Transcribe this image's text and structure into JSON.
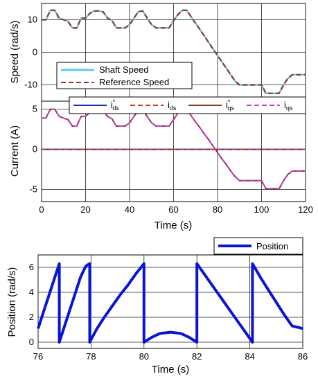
{
  "chart_data": [
    {
      "type": "line",
      "ylabel": "Speed (rad/s)",
      "xlabel": "",
      "xlim": [
        0,
        120
      ],
      "ylim": [
        -15,
        15
      ],
      "xticks": [
        "0",
        "20",
        "40",
        "60",
        "80",
        "100",
        "120"
      ],
      "yticks": [
        "-10",
        "0",
        "10"
      ],
      "ytick_values": [
        -10,
        0,
        10
      ],
      "legend_position": "lower-left",
      "series": [
        {
          "name": "Shaft Speed",
          "color": "#5bc8ec",
          "style": "solid",
          "x": [
            0,
            2,
            4,
            6,
            8,
            10,
            12,
            14,
            16,
            18,
            20,
            22,
            24,
            26,
            28,
            30,
            32,
            34,
            36,
            38,
            40,
            42,
            44,
            46,
            48,
            50,
            52,
            54,
            56,
            58,
            60,
            62,
            64,
            66,
            68,
            70,
            72,
            74,
            76,
            78,
            80,
            82,
            84,
            86,
            88,
            90,
            92,
            94,
            96,
            98,
            100,
            102,
            104,
            106,
            108,
            110,
            112,
            114,
            116,
            118,
            120
          ],
          "y": [
            10,
            10,
            12.9,
            12.9,
            10.5,
            10,
            9.5,
            7.5,
            7.5,
            10.5,
            10.5,
            12,
            12.7,
            12.7,
            12.4,
            10.5,
            9.8,
            7.5,
            7.5,
            7.5,
            8.5,
            10.5,
            12.5,
            12.7,
            10.5,
            8.5,
            7.5,
            7.5,
            7.5,
            7.5,
            9.7,
            11.6,
            12.9,
            12.9,
            10.9,
            8.9,
            7.0,
            5.0,
            3.0,
            1.0,
            -1.0,
            -3.0,
            -4.9,
            -6.9,
            -8.9,
            -10.0,
            -10.0,
            -10.0,
            -10.0,
            -10.0,
            -10.0,
            -12.6,
            -12.6,
            -12.6,
            -12.6,
            -10.0,
            -8.0,
            -6.9,
            -6.9,
            -6.9,
            -6.9
          ]
        },
        {
          "name": "Reference Speed",
          "color": "#a0302a",
          "style": "dashed",
          "x": [
            0,
            2,
            4,
            6,
            8,
            10,
            12,
            14,
            16,
            18,
            20,
            22,
            24,
            26,
            28,
            30,
            32,
            34,
            36,
            38,
            40,
            42,
            44,
            46,
            48,
            50,
            52,
            54,
            56,
            58,
            60,
            62,
            64,
            66,
            68,
            70,
            72,
            74,
            76,
            78,
            80,
            82,
            84,
            86,
            88,
            90,
            92,
            94,
            96,
            98,
            100,
            102,
            104,
            106,
            108,
            110,
            112,
            114,
            116,
            118,
            120
          ],
          "y": [
            10,
            10,
            12.9,
            12.9,
            10.5,
            10,
            9.5,
            7.5,
            7.5,
            10.5,
            10.5,
            12,
            12.7,
            12.7,
            12.4,
            10.5,
            9.8,
            7.5,
            7.5,
            7.5,
            8.5,
            10.5,
            12.5,
            12.7,
            10.5,
            8.5,
            7.5,
            7.5,
            7.5,
            7.5,
            9.7,
            11.6,
            12.9,
            12.9,
            10.9,
            8.9,
            7.0,
            5.0,
            3.0,
            1.0,
            -1.0,
            -3.0,
            -4.9,
            -6.9,
            -8.9,
            -10.0,
            -10.0,
            -10.0,
            -10.0,
            -10.0,
            -10.0,
            -12.6,
            -12.6,
            -12.6,
            -12.6,
            -10.0,
            -8.0,
            -6.9,
            -6.9,
            -6.9,
            -6.9
          ]
        }
      ],
      "legend": [
        "Shaft Speed",
        "Reference Speed"
      ]
    },
    {
      "type": "line",
      "ylabel": "Current (A)",
      "xlabel": "Time (s)",
      "xlim": [
        0,
        120
      ],
      "ylim": [
        -6.5,
        6
      ],
      "xticks": [
        "0",
        "20",
        "40",
        "60",
        "80",
        "100",
        "120"
      ],
      "xtick_values": [
        0,
        20,
        40,
        60,
        80,
        100,
        120
      ],
      "yticks": [
        "-5",
        "0",
        "5"
      ],
      "ytick_values": [
        -5,
        0,
        5
      ],
      "legend_position": "top",
      "series": [
        {
          "name": "i*ds",
          "color": "#1a2fb8",
          "style": "solid",
          "x": [
            0,
            120
          ],
          "y": [
            0,
            0
          ]
        },
        {
          "name": "ids",
          "color": "#c0392b",
          "style": "dashed",
          "x": [
            0,
            120
          ],
          "y": [
            0,
            0
          ]
        },
        {
          "name": "i*qs",
          "color": "#8b3a1e",
          "style": "solid",
          "x": [
            0,
            2,
            4,
            6,
            8,
            10,
            12,
            14,
            16,
            18,
            20,
            22,
            24,
            26,
            28,
            30,
            32,
            34,
            36,
            38,
            40,
            42,
            44,
            46,
            48,
            50,
            52,
            54,
            56,
            58,
            60,
            62,
            64,
            66,
            68,
            70,
            72,
            74,
            76,
            78,
            80,
            82,
            84,
            86,
            88,
            90,
            92,
            94,
            96,
            98,
            100,
            102,
            104,
            106,
            108,
            110,
            112,
            114,
            116,
            118,
            120
          ],
          "y": [
            3.9,
            3.9,
            5.0,
            5.0,
            4.1,
            3.9,
            3.7,
            2.9,
            2.9,
            4.1,
            4.1,
            4.6,
            4.9,
            4.9,
            4.8,
            4.1,
            3.8,
            2.9,
            2.9,
            2.9,
            3.3,
            4.1,
            4.8,
            4.9,
            4.1,
            3.3,
            2.9,
            2.9,
            2.9,
            2.9,
            3.7,
            4.5,
            5.0,
            5.0,
            4.2,
            3.4,
            2.7,
            1.9,
            1.2,
            0.4,
            -0.4,
            -1.2,
            -1.9,
            -2.7,
            -3.4,
            -3.9,
            -3.9,
            -3.9,
            -3.9,
            -3.9,
            -3.9,
            -4.9,
            -4.9,
            -4.9,
            -4.9,
            -3.9,
            -3.1,
            -2.7,
            -2.7,
            -2.7,
            -2.7
          ]
        },
        {
          "name": "iqs",
          "color": "#c23bd4",
          "style": "dashed",
          "x": [
            0,
            2,
            4,
            6,
            8,
            10,
            12,
            14,
            16,
            18,
            20,
            22,
            24,
            26,
            28,
            30,
            32,
            34,
            36,
            38,
            40,
            42,
            44,
            46,
            48,
            50,
            52,
            54,
            56,
            58,
            60,
            62,
            64,
            66,
            68,
            70,
            72,
            74,
            76,
            78,
            80,
            82,
            84,
            86,
            88,
            90,
            92,
            94,
            96,
            98,
            100,
            102,
            104,
            106,
            108,
            110,
            112,
            114,
            116,
            118,
            120
          ],
          "y": [
            3.9,
            3.9,
            5.0,
            5.0,
            4.1,
            3.9,
            3.7,
            2.9,
            2.9,
            4.1,
            4.1,
            4.6,
            4.9,
            4.9,
            4.8,
            4.1,
            3.8,
            2.9,
            2.9,
            2.9,
            3.3,
            4.1,
            4.8,
            4.9,
            4.1,
            3.3,
            2.9,
            2.9,
            2.9,
            2.9,
            3.7,
            4.5,
            5.0,
            5.0,
            4.2,
            3.4,
            2.7,
            1.9,
            1.2,
            0.4,
            -0.4,
            -1.2,
            -1.9,
            -2.7,
            -3.4,
            -3.9,
            -3.9,
            -3.9,
            -3.9,
            -3.9,
            -3.9,
            -4.9,
            -4.9,
            -4.9,
            -4.9,
            -3.9,
            -3.1,
            -2.7,
            -2.7,
            -2.7,
            -2.7
          ]
        }
      ],
      "legend_labels": [
        {
          "main": "i",
          "sup": "*",
          "sub": "ds"
        },
        {
          "main": "i",
          "sup": "",
          "sub": "ds"
        },
        {
          "main": "i",
          "sup": "*",
          "sub": "qs"
        },
        {
          "main": "i",
          "sup": "",
          "sub": "qs"
        }
      ]
    },
    {
      "type": "line",
      "ylabel": "Position (rad/s)",
      "xlabel": "Time (s)",
      "xlim": [
        76,
        86
      ],
      "ylim": [
        -0.5,
        7
      ],
      "xticks": [
        "76",
        "78",
        "80",
        "82",
        "84",
        "86"
      ],
      "xtick_values": [
        76,
        78,
        80,
        82,
        84,
        86
      ],
      "yticks": [
        "0",
        "2",
        "4",
        "6"
      ],
      "ytick_values": [
        0,
        2,
        4,
        6
      ],
      "legend_position": "top-right",
      "series": [
        {
          "name": "Position",
          "color": "#0a14d8",
          "style": "solid",
          "x": [
            76,
            76.2,
            76.4,
            76.6,
            76.8,
            76.8,
            77.0,
            77.2,
            77.4,
            77.6,
            77.8,
            77.95,
            77.95,
            78.2,
            78.5,
            78.8,
            79.1,
            79.4,
            79.7,
            80.0,
            80.0,
            80.3,
            80.6,
            81.0,
            81.4,
            81.7,
            82.0,
            82.0,
            82.3,
            82.6,
            82.9,
            83.2,
            83.5,
            83.8,
            84.1,
            84.1,
            84.4,
            84.7,
            85.0,
            85.3,
            85.6,
            86.0
          ],
          "y": [
            1.1,
            2.4,
            3.7,
            5.0,
            6.3,
            0.0,
            1.3,
            2.6,
            3.9,
            5.2,
            6.1,
            6.3,
            0.0,
            1.0,
            2.0,
            2.9,
            3.8,
            4.6,
            5.5,
            6.3,
            0.0,
            0.4,
            0.7,
            0.8,
            0.7,
            0.4,
            0.0,
            6.3,
            5.4,
            4.5,
            3.6,
            2.7,
            1.8,
            0.9,
            0.0,
            6.3,
            5.2,
            4.2,
            3.2,
            2.2,
            1.3,
            1.1
          ]
        }
      ],
      "legend": [
        "Position"
      ]
    }
  ]
}
